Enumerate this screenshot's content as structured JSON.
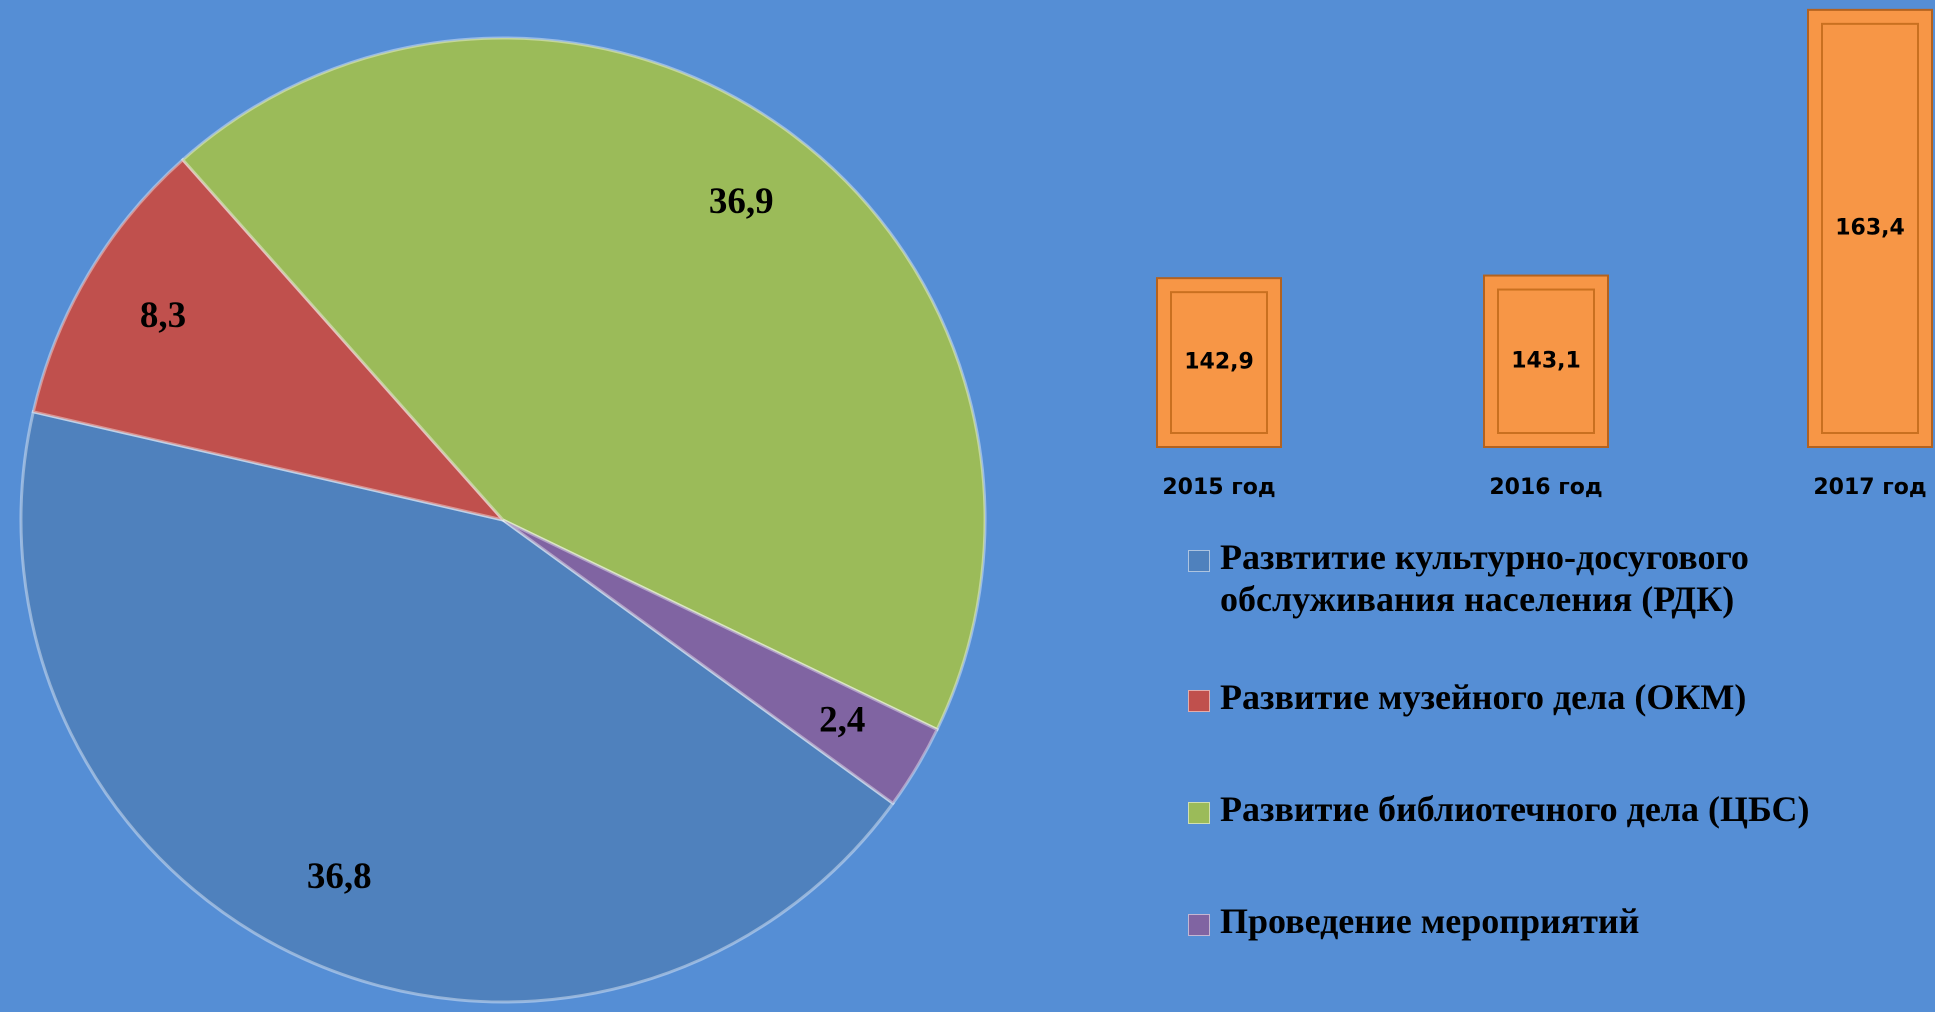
{
  "chart_data": [
    {
      "type": "pie",
      "series": [
        {
          "name": "Развтитие культурно-досугового обслуживания населения (РДК)",
          "color": "#4f81bd",
          "values": [
            36.8
          ],
          "value_labels": [
            "36,8"
          ]
        },
        {
          "name": "Развитие музейного дела (ОКМ)",
          "color": "#c0504d",
          "values": [
            8.3
          ],
          "value_labels": [
            "8,3"
          ]
        },
        {
          "name": "Развитие библиотечного дела (ЦБС)",
          "color": "#9bbb59",
          "values": [
            36.9
          ],
          "value_labels": [
            "36,9"
          ]
        },
        {
          "name": "Проведение мероприятий",
          "color": "#8064a2",
          "values": [
            2.4
          ],
          "value_labels": [
            "2,4"
          ]
        }
      ],
      "legend": "right"
    },
    {
      "type": "bar",
      "categories": [
        "2015 год",
        "2016 год",
        "2017 год"
      ],
      "values": [
        142.9,
        143.1,
        163.4
      ],
      "value_labels": [
        "142,9",
        "143,1",
        "163,4"
      ],
      "color": "#f79646",
      "ylim": [
        130,
        164
      ]
    }
  ]
}
